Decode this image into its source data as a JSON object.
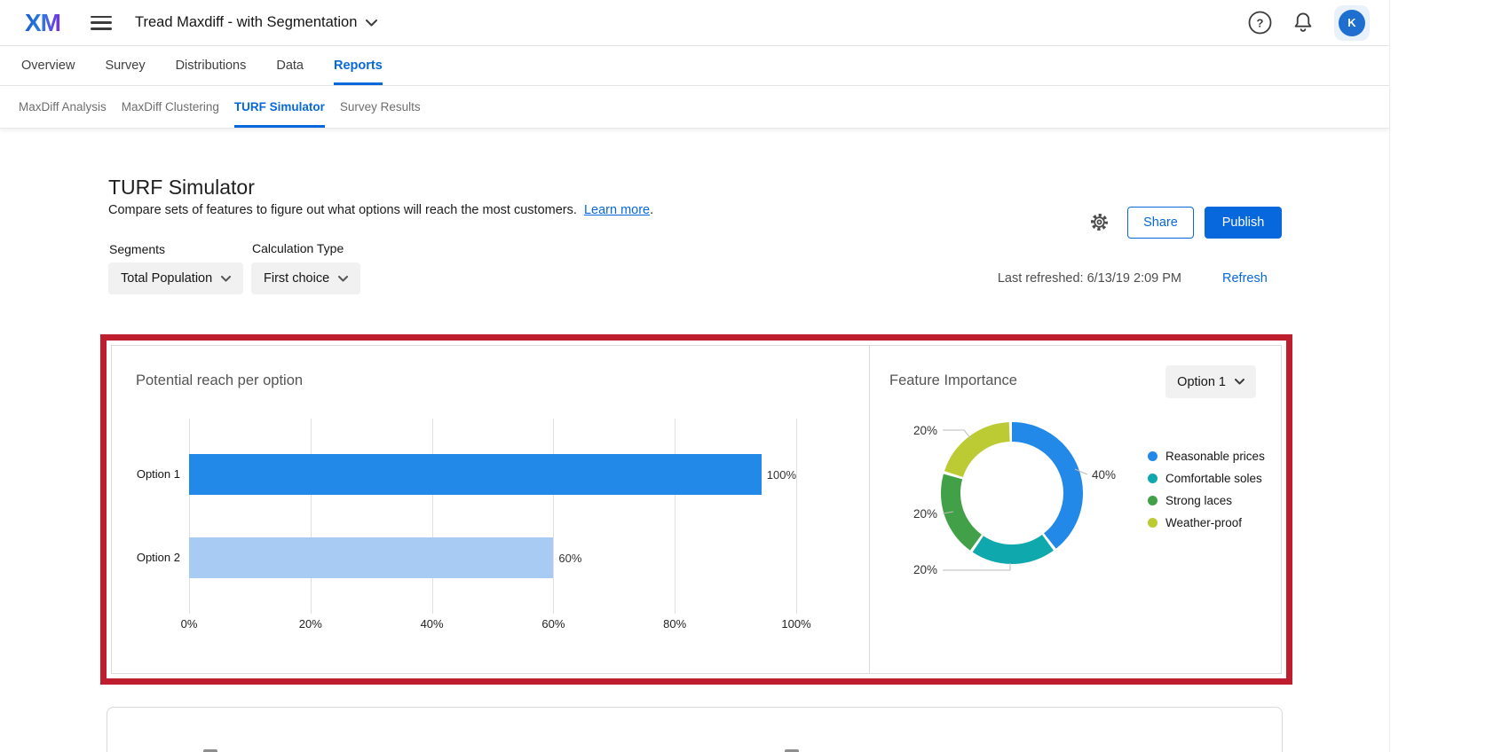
{
  "topbar": {
    "logo_text": "XM",
    "project_title": "Tread Maxdiff - with Segmentation",
    "avatar_initial": "K",
    "icons": {
      "menu": "hamburger-icon",
      "help": "question-mark-circle-icon",
      "notifications": "bell-icon"
    }
  },
  "nav": {
    "tabs": [
      {
        "label": "Overview",
        "active": false
      },
      {
        "label": "Survey",
        "active": false
      },
      {
        "label": "Distributions",
        "active": false
      },
      {
        "label": "Data",
        "active": false
      },
      {
        "label": "Reports",
        "active": true
      }
    ]
  },
  "subnav": {
    "items": [
      {
        "label": "MaxDiff Analysis",
        "active": false
      },
      {
        "label": "MaxDiff Clustering",
        "active": false
      },
      {
        "label": "TURF Simulator",
        "active": true
      },
      {
        "label": "Survey Results",
        "active": false
      }
    ]
  },
  "page": {
    "title": "TURF Simulator",
    "description": "Compare sets of features to figure out what options will reach the most customers.",
    "learn_more_label": "Learn more",
    "learn_more_suffix": ".",
    "share_label": "Share",
    "publish_label": "Publish",
    "segments_label": "Segments",
    "segments_value": "Total Population",
    "calculation_type_label": "Calculation Type",
    "calculation_type_value": "First choice",
    "last_refreshed": "Last refreshed: 6/13/19 2:09 PM",
    "refresh_label": "Refresh",
    "accent_color": "#0768DD",
    "highlight_border_color": "#BE1E2D"
  },
  "chart_data": [
    {
      "type": "bar",
      "orientation": "horizontal",
      "title": "Potential reach per option",
      "categories": [
        "Option 1",
        "Option 2"
      ],
      "values": [
        100,
        60
      ],
      "value_labels": [
        "100%",
        "60%"
      ],
      "bar_colors": [
        "#2289E8",
        "#A7CBF2"
      ],
      "x_ticks": [
        "0%",
        "20%",
        "40%",
        "60%",
        "80%",
        "100%"
      ],
      "xlim": [
        0,
        100
      ],
      "grid": true
    },
    {
      "type": "pie",
      "donut": true,
      "title": "Feature Importance",
      "selector_value": "Option 1",
      "legend_position": "right",
      "slices": [
        {
          "label": "Reasonable prices",
          "value": 40,
          "pct_text": "40%",
          "color": "#2289E8"
        },
        {
          "label": "Comfortable soles",
          "value": 20,
          "pct_text": "20%",
          "color": "#0FA8AC"
        },
        {
          "label": "Strong laces",
          "value": 20,
          "pct_text": "20%",
          "color": "#41A048"
        },
        {
          "label": "Weather-proof",
          "value": 20,
          "pct_text": "20%",
          "color": "#BCCB33"
        }
      ]
    }
  ]
}
